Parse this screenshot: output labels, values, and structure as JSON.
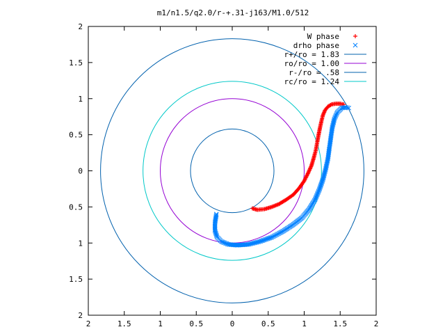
{
  "chart_data": {
    "type": "scatter",
    "title": "m1/n1.5/q2.0/r-+.31-j163/M1.0/512",
    "xlabel": "",
    "ylabel": "",
    "xlim": [
      -2,
      2
    ],
    "ylim": [
      -2,
      2
    ],
    "x_ticks": [
      -2,
      -1.5,
      -1,
      -0.5,
      0,
      0.5,
      1,
      1.5,
      2
    ],
    "y_ticks": [
      -2,
      -1.5,
      -1,
      -0.5,
      0,
      0.5,
      1,
      1.5,
      2
    ],
    "x_tick_labels": [
      "2",
      "1.5",
      "1",
      "0.5",
      "0",
      "0.5",
      "1",
      "1.5",
      "2"
    ],
    "y_tick_labels": [
      "2",
      "1.5",
      "1",
      "0.5",
      "0",
      "0.5",
      "1",
      "1.5",
      "2"
    ],
    "grid": false,
    "legend_position": "top-right",
    "series": [
      {
        "name": "W phase",
        "kind": "points",
        "marker": "plus",
        "color": "#ff0000",
        "x": [
          0.28,
          0.35,
          0.45,
          0.55,
          0.65,
          0.75,
          0.85,
          0.93,
          1.0,
          1.05,
          1.1,
          1.13,
          1.16,
          1.18,
          1.2,
          1.22,
          1.24,
          1.26,
          1.29,
          1.33,
          1.38,
          1.44,
          1.5,
          1.55
        ],
        "y": [
          -0.52,
          -0.54,
          -0.53,
          -0.5,
          -0.46,
          -0.4,
          -0.33,
          -0.24,
          -0.14,
          -0.04,
          0.07,
          0.17,
          0.28,
          0.39,
          0.5,
          0.6,
          0.69,
          0.77,
          0.84,
          0.89,
          0.92,
          0.93,
          0.93,
          0.92
        ]
      },
      {
        "name": "drho phase",
        "kind": "points",
        "marker": "cross",
        "color": "#0080ff",
        "x": [
          -0.22,
          -0.24,
          -0.24,
          -0.21,
          -0.15,
          -0.05,
          0.07,
          0.22,
          0.38,
          0.55,
          0.7,
          0.84,
          0.97,
          1.07,
          1.15,
          1.21,
          1.26,
          1.3,
          1.33,
          1.35,
          1.37,
          1.39,
          1.42,
          1.46,
          1.52,
          1.58,
          1.62
        ],
        "y": [
          -0.6,
          -0.72,
          -0.83,
          -0.92,
          -0.98,
          -1.02,
          -1.03,
          -1.02,
          -0.98,
          -0.92,
          -0.84,
          -0.75,
          -0.65,
          -0.53,
          -0.4,
          -0.26,
          -0.12,
          0.03,
          0.17,
          0.32,
          0.46,
          0.6,
          0.72,
          0.81,
          0.87,
          0.88,
          0.87
        ]
      },
      {
        "name": "r+/ro = 1.83",
        "kind": "circle",
        "radius": 1.83,
        "color": "#0060ad"
      },
      {
        "name": "ro/ro = 1.00",
        "kind": "circle",
        "radius": 1.0,
        "color": "#9400d3"
      },
      {
        "name": "r-/ro = .58",
        "kind": "circle",
        "radius": 0.58,
        "color": "#0060ad"
      },
      {
        "name": "rc/ro = 1.24",
        "kind": "circle",
        "radius": 1.24,
        "color": "#00c8c8"
      }
    ]
  }
}
